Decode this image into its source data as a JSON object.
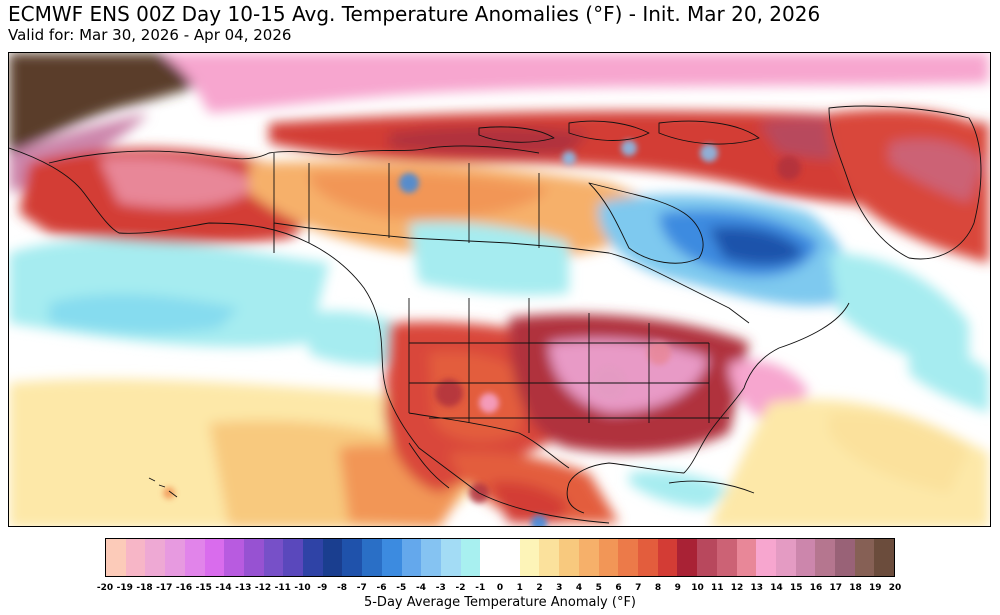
{
  "header": {
    "title": "ECMWF ENS 00Z Day 10-15 Avg. Temperature Anomalies (°F) - Init. Mar 20, 2026",
    "valid": "Valid for: Mar 30, 2026 - Apr 04, 2026"
  },
  "map": {
    "region": "North America",
    "colors": {
      "strong_warm": "#b0303c",
      "warm": "#d9473a",
      "mild_warm": "#f6b56f",
      "slight_warm": "#fde8a8",
      "hot_pink": "#e89ac6",
      "extreme_warm": "#5a3c2c",
      "cool": "#7ec9ef",
      "cold": "#3b7fd0",
      "slight_cool": "#a6ecf0",
      "neutral": "#ffffff"
    }
  },
  "colorbar": {
    "label": "5-Day Average Temperature Anomaly (°F)",
    "ticks": [
      "-20",
      "-19",
      "-18",
      "-17",
      "-16",
      "-15",
      "-14",
      "-13",
      "-12",
      "-11",
      "-10",
      "-9",
      "-8",
      "-7",
      "-6",
      "-5",
      "-4",
      "-3",
      "-2",
      "-1",
      "0",
      "1",
      "2",
      "3",
      "4",
      "5",
      "6",
      "7",
      "8",
      "9",
      "10",
      "11",
      "12",
      "13",
      "14",
      "15",
      "16",
      "17",
      "18",
      "19",
      "20"
    ],
    "colors": [
      "#fccbb9",
      "#f7b6c7",
      "#eea9d4",
      "#e79ae0",
      "#e184ea",
      "#d96ced",
      "#b85be0",
      "#9752d2",
      "#7750c8",
      "#5a48bc",
      "#2f43a6",
      "#1a3e8f",
      "#1f52ab",
      "#2a6fc6",
      "#3c8be0",
      "#64a8ec",
      "#85c3f2",
      "#a3dcf5",
      "#a8f0f0",
      "#ffffff",
      "#ffffff",
      "#fdf4b8",
      "#fbe19c",
      "#f8c97e",
      "#f6b06a",
      "#f29657",
      "#ec7a49",
      "#e35d3d",
      "#d33c35",
      "#a92235",
      "#b8485d",
      "#cc6275",
      "#e88798",
      "#f7a6cf",
      "#e49bc3",
      "#cc86ac",
      "#b5768f",
      "#996277",
      "#866055",
      "#6b4c3c"
    ]
  }
}
